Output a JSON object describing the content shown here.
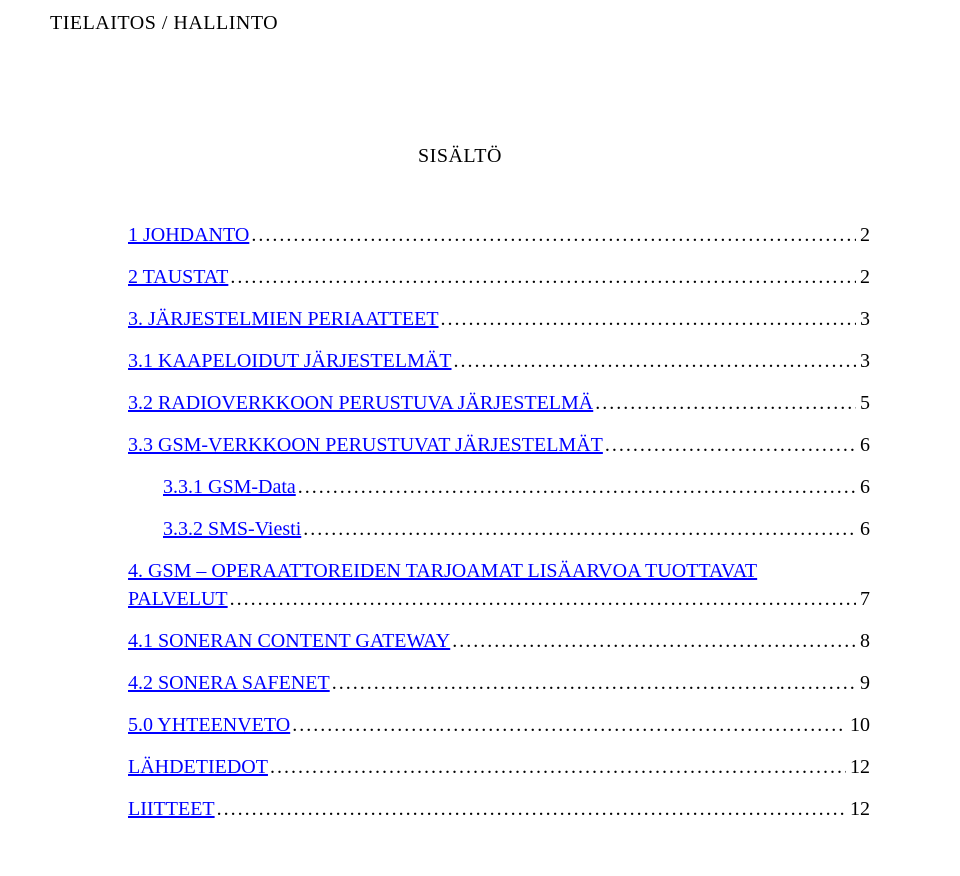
{
  "header": "TIELAITOS / HALLINTO",
  "title": "SISÄLTÖ",
  "colors": {
    "link": "#0000ff",
    "text": "#000000",
    "background": "#ffffff"
  },
  "typography": {
    "family": "Times New Roman",
    "size_pt": 15
  },
  "toc": [
    {
      "label": "1 JOHDANTO",
      "page": "2",
      "indent": 0
    },
    {
      "label": "2 TAUSTAT",
      "page": "2",
      "indent": 0
    },
    {
      "label": "3. JÄRJESTELMIEN PERIAATTEET",
      "page": "3",
      "indent": 0
    },
    {
      "label": "3.1 KAAPELOIDUT JÄRJESTELMÄT",
      "page": "3",
      "indent": 0
    },
    {
      "label": "3.2 RADIOVERKKOON PERUSTUVA JÄRJESTELMÄ",
      "page": "5",
      "indent": 0
    },
    {
      "label": "3.3 GSM-VERKKOON PERUSTUVAT JÄRJESTELMÄT",
      "page": "6",
      "indent": 0
    },
    {
      "label": "3.3.1 GSM-Data",
      "page": "6",
      "indent": 1
    },
    {
      "label": "3.3.2 SMS-Viesti",
      "page": "6",
      "indent": 1
    },
    {
      "label_line1": "4. GSM – OPERAATTOREIDEN TARJOAMAT LISÄARVOA TUOTTAVAT",
      "label_line2": "PALVELUT",
      "page": "7",
      "indent": 0,
      "wrap": true
    },
    {
      "label": "4.1 SONERAN CONTENT GATEWAY",
      "page": "8",
      "indent": 0
    },
    {
      "label": "4.2 SONERA SAFENET",
      "page": "9",
      "indent": 0
    },
    {
      "label": "5.0 YHTEENVETO",
      "page": "10",
      "indent": 0
    },
    {
      "label": "LÄHDETIEDOT",
      "page": "12",
      "indent": 0
    },
    {
      "label": "LIITTEET",
      "page": "12",
      "indent": 0
    }
  ]
}
